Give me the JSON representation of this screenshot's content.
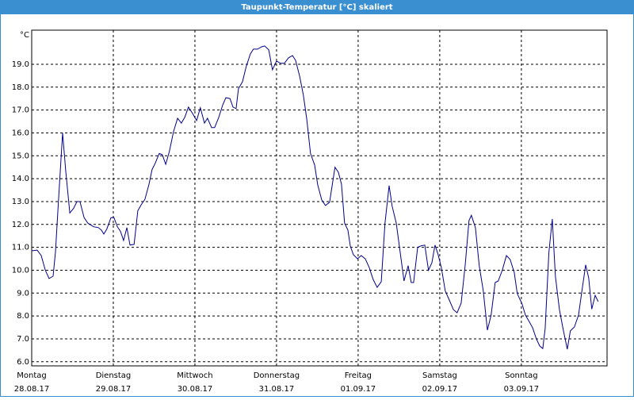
{
  "chart_data": {
    "type": "line",
    "title": "Taupunkt-Temperatur [°C] skaliert",
    "y_label": "°C",
    "x": [
      0,
      1.6,
      2.8,
      4.0,
      5.1,
      6.3,
      7.0,
      7.9,
      9.1,
      10.0,
      11.2,
      12.3,
      13.3,
      14.2,
      15.4,
      16.5,
      18.2,
      19.6,
      20.5,
      21.2,
      22.1,
      23.3,
      24.2,
      25.2,
      26.1,
      27.0,
      28.0,
      28.9,
      30.1,
      31.2,
      32.2,
      33.3,
      34.5,
      35.4,
      36.3,
      37.5,
      38.4,
      39.4,
      40.5,
      41.7,
      42.9,
      44.0,
      45.0,
      46.1,
      47.3,
      48.5,
      49.6,
      50.8,
      51.7,
      52.9,
      53.8,
      55.0,
      56.2,
      57.1,
      58.3,
      59.2,
      60.1,
      60.8,
      62.0,
      63.1,
      64.3,
      65.2,
      66.4,
      67.6,
      68.5,
      69.7,
      70.8,
      72.0,
      73.2,
      74.3,
      75.5,
      76.7,
      77.6,
      78.8,
      79.9,
      80.9,
      82.0,
      83.2,
      84.1,
      85.3,
      86.4,
      87.6,
      88.5,
      89.2,
      90.2,
      91.1,
      92.0,
      93.0,
      93.7,
      94.6,
      95.8,
      96.9,
      98.1,
      99.3,
      100.4,
      101.6,
      102.8,
      103.9,
      105.1,
      106.0,
      107.2,
      108.3,
      109.5,
      110.7,
      111.6,
      112.3,
      113.5,
      114.4,
      115.6,
      116.7,
      117.7,
      118.6,
      119.5,
      120.5,
      121.6,
      122.8,
      124.0,
      125.1,
      126.3,
      127.5,
      128.6,
      129.3,
      130.5,
      131.6,
      132.8,
      134.0,
      135.1,
      136.3,
      137.2,
      138.4,
      139.6,
      140.7,
      141.9,
      142.8,
      144.2,
      145.2,
      146.3,
      147.3,
      148.4,
      149.4,
      150.3,
      151.0,
      152.1,
      153.1,
      154.0,
      155.2,
      156.3,
      157.5,
      158.4,
      159.6,
      160.8,
      161.7,
      162.9,
      163.8,
      164.7,
      165.7,
      166.6
    ],
    "series": [
      {
        "name": "Taupunkt-Temperatur",
        "color": "#00008b",
        "values": [
          10.85,
          10.88,
          10.64,
          10.0,
          9.64,
          9.74,
          10.8,
          13.1,
          16.0,
          14.35,
          12.5,
          12.7,
          13.0,
          13.0,
          12.3,
          12.06,
          11.9,
          11.86,
          11.75,
          11.58,
          11.8,
          12.3,
          12.3,
          11.9,
          11.7,
          11.3,
          11.86,
          11.1,
          11.13,
          12.6,
          12.86,
          13.1,
          13.76,
          14.4,
          14.67,
          15.1,
          15.05,
          14.63,
          15.2,
          16.05,
          16.64,
          16.43,
          16.68,
          17.13,
          16.85,
          16.54,
          17.1,
          16.43,
          16.64,
          16.23,
          16.23,
          16.68,
          17.23,
          17.54,
          17.5,
          17.13,
          17.06,
          17.93,
          18.24,
          18.9,
          19.45,
          19.66,
          19.66,
          19.76,
          19.8,
          19.63,
          18.76,
          19.14,
          19.04,
          19.04,
          19.28,
          19.38,
          19.17,
          18.48,
          17.65,
          16.6,
          15.1,
          14.6,
          13.73,
          13.07,
          12.83,
          12.97,
          13.83,
          14.5,
          14.28,
          13.76,
          12.06,
          11.75,
          11.06,
          10.68,
          10.5,
          10.64,
          10.5,
          10.1,
          9.6,
          9.25,
          9.5,
          12.06,
          13.7,
          12.8,
          12.06,
          10.85,
          9.53,
          10.2,
          9.46,
          9.46,
          11.0,
          11.06,
          11.1,
          10.0,
          10.33,
          11.1,
          10.7,
          10.1,
          9.1,
          8.7,
          8.28,
          8.14,
          8.56,
          10.26,
          12.17,
          12.4,
          11.86,
          10.2,
          9.1,
          7.38,
          8.04,
          9.46,
          9.53,
          10.0,
          10.64,
          10.47,
          9.9,
          8.98,
          8.53,
          8.04,
          7.76,
          7.49,
          7.0,
          6.69,
          6.58,
          7.45,
          10.78,
          12.24,
          9.74,
          8.28,
          7.42,
          6.55,
          7.35,
          7.52,
          8.04,
          8.98,
          10.23,
          9.67,
          8.3,
          8.9,
          8.63
        ]
      }
    ],
    "xlim": [
      0,
      169.2
    ],
    "ylim": [
      5.82,
      20.49
    ],
    "xticks": [
      {
        "value": 0,
        "label": "Montag",
        "date": "28.08.17"
      },
      {
        "value": 24,
        "label": "Dienstag",
        "date": "29.08.17"
      },
      {
        "value": 48,
        "label": "Mittwoch",
        "date": "30.08.17"
      },
      {
        "value": 72,
        "label": "Donnerstag",
        "date": "31.08.17"
      },
      {
        "value": 96,
        "label": "Freitag",
        "date": "01.09.17"
      },
      {
        "value": 120,
        "label": "Samstag",
        "date": "02.09.17"
      },
      {
        "value": 144,
        "label": "Sonntag",
        "date": "03.09.17"
      }
    ],
    "yticks": [
      {
        "value": 6,
        "label": "6.0"
      },
      {
        "value": 7,
        "label": "7.0"
      },
      {
        "value": 8,
        "label": "8.0"
      },
      {
        "value": 9,
        "label": "9.0"
      },
      {
        "value": 10,
        "label": "10.0"
      },
      {
        "value": 11,
        "label": "11.0"
      },
      {
        "value": 12,
        "label": "12.0"
      },
      {
        "value": 13,
        "label": "13.0"
      },
      {
        "value": 14,
        "label": "14.0"
      },
      {
        "value": 15,
        "label": "15.0"
      },
      {
        "value": 16,
        "label": "16.0"
      },
      {
        "value": 17,
        "label": "17.0"
      },
      {
        "value": 18,
        "label": "18.0"
      },
      {
        "value": 19,
        "label": "19.0"
      }
    ],
    "grid": true
  }
}
